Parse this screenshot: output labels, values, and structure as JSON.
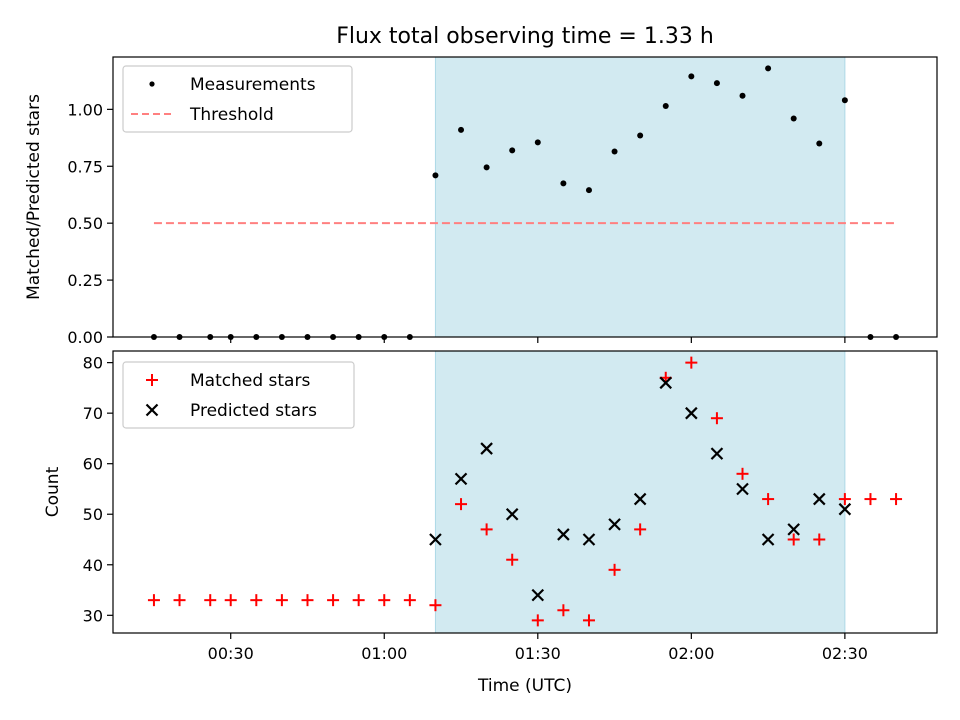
{
  "chart_data": [
    {
      "type": "scatter",
      "title": "Flux total observing time = 1.33 h",
      "xlabel": "",
      "ylabel": "Matched/Predicted stars",
      "ylim": [
        0,
        1.23
      ],
      "yticks": [
        "0.00",
        "0.25",
        "0.50",
        "0.75",
        "1.00"
      ],
      "ytick_values": [
        0,
        0.25,
        0.5,
        0.75,
        1.0
      ],
      "shaded_region": {
        "x": [
          "01:10",
          "02:30"
        ],
        "color": "#add8e6"
      },
      "threshold": {
        "name": "Threshold",
        "value": 0.5,
        "x": [
          "00:15",
          "02:40"
        ],
        "color": "#ff8080"
      },
      "legend": {
        "position": "top-left",
        "entries": [
          "Measurements",
          "Threshold"
        ]
      },
      "series": [
        {
          "name": "Measurements",
          "marker": "dot",
          "color": "#000000",
          "x": [
            "00:15",
            "00:20",
            "00:26",
            "00:30",
            "00:35",
            "00:40",
            "00:45",
            "00:50",
            "00:55",
            "01:00",
            "01:05",
            "01:10",
            "01:15",
            "01:20",
            "01:25",
            "01:30",
            "01:35",
            "01:40",
            "01:45",
            "01:50",
            "01:55",
            "02:00",
            "02:05",
            "02:10",
            "02:15",
            "02:20",
            "02:25",
            "02:30",
            "02:35",
            "02:40"
          ],
          "y": [
            0,
            0,
            0,
            0,
            0,
            0,
            0,
            0,
            0,
            0,
            0,
            0.71,
            0.91,
            0.745,
            0.82,
            0.855,
            0.675,
            0.645,
            0.815,
            0.885,
            1.015,
            1.145,
            1.115,
            1.06,
            1.18,
            0.96,
            0.85,
            1.04,
            0,
            0
          ]
        }
      ]
    },
    {
      "type": "scatter",
      "xlabel": "Time (UTC)",
      "ylabel": "Count",
      "ylim": [
        26.5,
        82.3
      ],
      "yticks": [
        "30",
        "40",
        "50",
        "60",
        "70",
        "80"
      ],
      "ytick_values": [
        30,
        40,
        50,
        60,
        70,
        80
      ],
      "xticks": [
        "00:30",
        "01:00",
        "01:30",
        "02:00",
        "02:30"
      ],
      "xlim": [
        "00:07",
        "02:48"
      ],
      "shaded_region": {
        "x": [
          "01:10",
          "02:30"
        ],
        "color": "#add8e6"
      },
      "legend": {
        "position": "top-left",
        "entries": [
          "Matched stars",
          "Predicted stars"
        ]
      },
      "series": [
        {
          "name": "Matched stars",
          "marker": "plus",
          "color": "#ff0000",
          "x": [
            "00:15",
            "00:20",
            "00:26",
            "00:30",
            "00:35",
            "00:40",
            "00:45",
            "00:50",
            "00:55",
            "01:00",
            "01:05",
            "01:10",
            "01:15",
            "01:20",
            "01:25",
            "01:30",
            "01:35",
            "01:40",
            "01:45",
            "01:50",
            "01:55",
            "02:00",
            "02:05",
            "02:10",
            "02:15",
            "02:20",
            "02:25",
            "02:30",
            "02:35",
            "02:40"
          ],
          "y": [
            33,
            33,
            33,
            33,
            33,
            33,
            33,
            33,
            33,
            33,
            33,
            32,
            52,
            47,
            41,
            29,
            31,
            29,
            39,
            47,
            77,
            80,
            69,
            58,
            53,
            45,
            45,
            53,
            53,
            53
          ]
        },
        {
          "name": "Predicted stars",
          "marker": "x",
          "color": "#000000",
          "x": [
            "01:10",
            "01:15",
            "01:20",
            "01:25",
            "01:30",
            "01:35",
            "01:40",
            "01:45",
            "01:50",
            "01:55",
            "02:00",
            "02:05",
            "02:10",
            "02:15",
            "02:20",
            "02:25",
            "02:30"
          ],
          "y": [
            45,
            57,
            63,
            50,
            34,
            46,
            45,
            48,
            53,
            76,
            70,
            62,
            55,
            45,
            47,
            53,
            51
          ]
        }
      ]
    }
  ]
}
